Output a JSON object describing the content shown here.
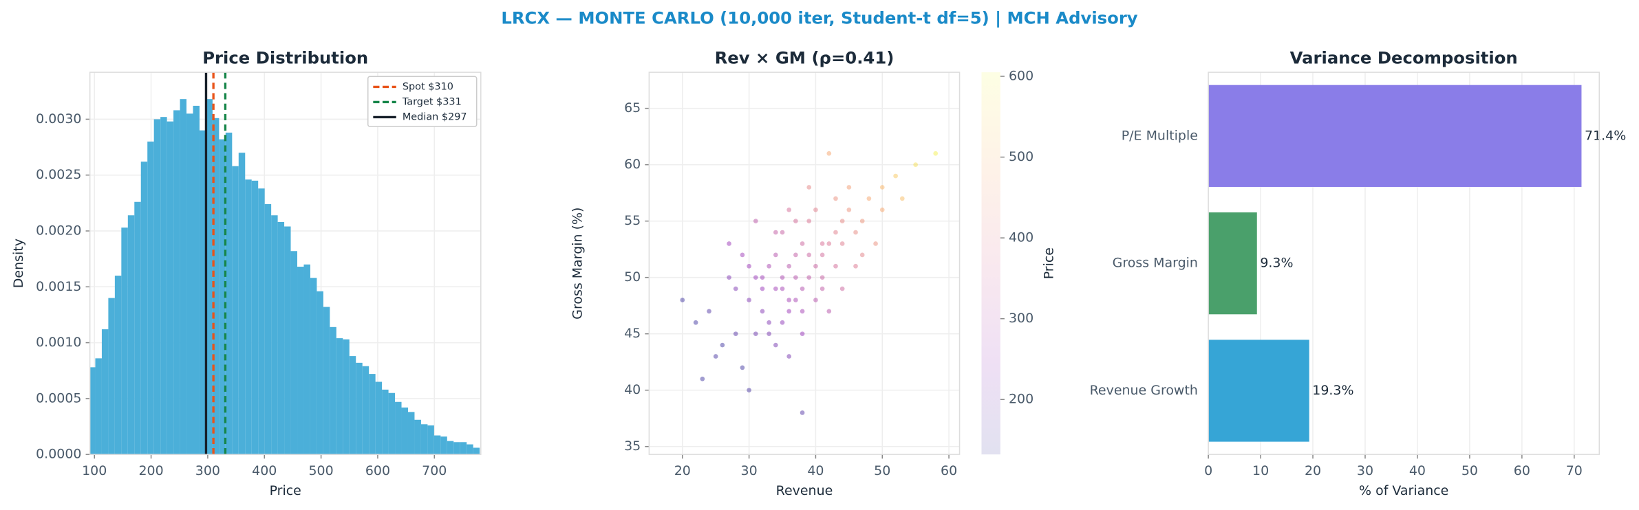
{
  "title": "LRCX — MONTE CARLO (10,000 iter, Student-t df=5) | MCH Advisory",
  "chart_data": [
    {
      "type": "histogram",
      "title": "Price Distribution",
      "xlabel": "Price",
      "ylabel": "Density",
      "color": "#4bafd9",
      "bins": [
        90,
        101.5,
        113,
        124.5,
        136,
        147.5,
        159,
        170.5,
        182,
        193.5,
        205,
        216.5,
        228,
        239.5,
        251,
        262.5,
        274,
        285.5,
        297,
        308.5,
        320,
        331.5,
        343,
        354.5,
        366,
        377.5,
        389,
        400.5,
        412,
        423.5,
        435,
        446.5,
        458,
        469.5,
        481,
        492.5,
        504,
        515.5,
        527,
        538.5,
        550,
        561.5,
        573,
        584.5,
        596,
        607.5,
        619,
        630.5,
        642,
        653.5,
        665,
        676.5,
        688,
        699.5,
        711,
        722.5,
        734,
        745.5,
        757,
        768.5,
        780
      ],
      "values": [
        0.00078,
        0.00086,
        0.00112,
        0.0014,
        0.0016,
        0.00203,
        0.00214,
        0.00226,
        0.00262,
        0.0028,
        0.003,
        0.00302,
        0.00298,
        0.00308,
        0.00318,
        0.00305,
        0.00312,
        0.0029,
        0.00318,
        0.00301,
        0.00282,
        0.00288,
        0.00258,
        0.0027,
        0.00246,
        0.00245,
        0.00238,
        0.00224,
        0.00214,
        0.00208,
        0.00204,
        0.00182,
        0.00168,
        0.0017,
        0.00158,
        0.00146,
        0.00132,
        0.00114,
        0.00104,
        0.00103,
        0.00088,
        0.00082,
        0.00079,
        0.00072,
        0.00065,
        0.00058,
        0.00055,
        0.00047,
        0.00042,
        0.00038,
        0.00031,
        0.00027,
        0.00026,
        0.00017,
        0.00016,
        0.00012,
        0.00011,
        0.00011,
        9e-05,
        6e-05
      ],
      "xlim": [
        92,
        782
      ],
      "xticks": [
        100,
        200,
        300,
        400,
        500,
        600,
        700
      ],
      "ylim": [
        0,
        0.00342
      ],
      "yticks": [
        {
          "value": 0,
          "label": "0.0000"
        },
        {
          "value": 0.0005,
          "label": "0.0005"
        },
        {
          "value": 0.001,
          "label": "0.0010"
        },
        {
          "value": 0.0015,
          "label": "0.0015"
        },
        {
          "value": 0.002,
          "label": "0.0020"
        },
        {
          "value": 0.0025,
          "label": "0.0025"
        },
        {
          "value": 0.003,
          "label": "0.0030"
        }
      ],
      "grid": true,
      "legend": "upper right",
      "vlines": [
        {
          "name": "Spot $310",
          "value": 310,
          "color": "#e8541a",
          "style": "dashed"
        },
        {
          "name": "Target $331",
          "value": 331,
          "color": "#17864a",
          "style": "dashed"
        },
        {
          "name": "Median $297",
          "value": 297,
          "color": "#17202a",
          "style": "solid"
        }
      ]
    },
    {
      "type": "scatter",
      "title": "Rev × GM (ρ=0.41)",
      "xlabel": "Revenue",
      "ylabel": "Gross Margin (%)",
      "colormap": "plasma",
      "clabel": "Price",
      "clim": [
        132,
        605
      ],
      "cticks": [
        200,
        300,
        400,
        500,
        600
      ],
      "x": [
        37,
        32,
        41,
        28,
        45,
        35,
        39,
        30,
        43,
        36,
        33,
        48,
        26,
        40,
        38,
        31,
        44,
        34,
        29,
        42,
        36,
        50,
        24,
        39,
        35,
        47,
        33,
        41,
        27,
        37,
        52,
        30,
        38,
        44,
        34,
        22,
        40,
        46,
        32,
        36,
        55,
        29,
        43,
        37,
        31,
        39,
        49,
        35,
        25,
        42,
        38,
        33,
        45,
        28,
        41,
        36,
        53,
        30,
        40,
        34,
        47,
        20,
        38,
        43,
        32,
        36,
        58,
        27,
        44,
        39,
        35,
        31,
        46,
        41,
        37,
        23,
        50,
        34,
        42,
        38
      ],
      "y": [
        50,
        47,
        53,
        45,
        56,
        49,
        52,
        48,
        54,
        51,
        46,
        57,
        44,
        51,
        49,
        50,
        55,
        52,
        42,
        53,
        48,
        58,
        47,
        50,
        54,
        55,
        45,
        49,
        50,
        52,
        59,
        51,
        47,
        53,
        44,
        46,
        56,
        54,
        49,
        43,
        60,
        52,
        51,
        48,
        45,
        55,
        53,
        50,
        43,
        47,
        53,
        51,
        58,
        49,
        52,
        56,
        57,
        40,
        48,
        54,
        52,
        48,
        45,
        57,
        50,
        47,
        61,
        53,
        49,
        58,
        46,
        55,
        51,
        50,
        55,
        41,
        56,
        49,
        61,
        38
      ],
      "c": [
        300,
        224,
        368,
        168,
        436,
        272,
        340,
        220,
        396,
        304,
        220,
        472,
        140,
        336,
        296,
        252,
        416,
        300,
        140,
        376,
        268,
        500,
        160,
        316,
        332,
        440,
        208,
        320,
        220,
        324,
        528,
        256,
        272,
        392,
        204,
        140,
        396,
        420,
        248,
        208,
        564,
        260,
        360,
        276,
        192,
        376,
        432,
        284,
        150,
        304,
        344,
        280,
        460,
        216,
        356,
        364,
        512,
        150,
        300,
        324,
        404,
        140,
        248,
        432,
        260,
        256,
        590,
        256,
        344,
        412,
        236,
        312,
        384,
        332,
        360,
        140,
        476,
        264,
        472,
        164
      ],
      "xlim": [
        15,
        61.6
      ],
      "xticks": [
        20,
        30,
        40,
        50,
        60
      ],
      "ylim": [
        34.3,
        68.2
      ],
      "yticks": [
        35,
        40,
        45,
        50,
        55,
        60,
        65
      ],
      "grid": true
    },
    {
      "type": "bar",
      "orientation": "horizontal",
      "title": "Variance Decomposition",
      "xlabel": "% of Variance",
      "categories": [
        "Revenue Growth",
        "Gross Margin",
        "P/E Multiple"
      ],
      "values": [
        19.3,
        9.3,
        71.4
      ],
      "value_labels": [
        "19.3%",
        "9.3%",
        "71.4%"
      ],
      "colors": [
        "#36a5d6",
        "#4aa06b",
        "#8a7de8"
      ],
      "xlim": [
        0,
        74.8
      ],
      "xticks": [
        0,
        10,
        20,
        30,
        40,
        50,
        60,
        70
      ],
      "grid": true
    }
  ]
}
